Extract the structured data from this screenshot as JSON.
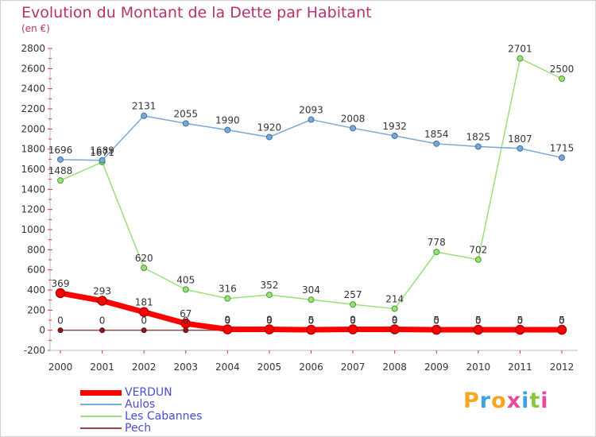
{
  "header": {
    "title": "Evolution du Montant de la Dette par Habitant",
    "subtitle": "(en €)"
  },
  "logo": {
    "letters": [
      "P",
      "r",
      "o",
      "x",
      "i",
      "t",
      "i"
    ],
    "colors": [
      "#f5a623",
      "#3aa3e3",
      "#f5a623",
      "#e84a9a",
      "#3aa3e3",
      "#8cc63f",
      "#e84a9a"
    ]
  },
  "chart_data": {
    "type": "line",
    "title": "Evolution du Montant de la Dette par Habitant",
    "subtitle": "(en €)",
    "x": [
      "2000",
      "2001",
      "2002",
      "2003",
      "2004",
      "2005",
      "2006",
      "2007",
      "2008",
      "2009",
      "2010",
      "2011",
      "2012"
    ],
    "ylim": [
      -200,
      2800
    ],
    "yticks": [
      -200,
      0,
      200,
      400,
      600,
      800,
      1000,
      1200,
      1400,
      1600,
      1800,
      2000,
      2200,
      2400,
      2600,
      2800
    ],
    "grid": false,
    "legend_position": "bottom-left",
    "series": [
      {
        "name": "VERDUN",
        "color": "#ff0000",
        "values": [
          369,
          293,
          181,
          67,
          9,
          9,
          5,
          9,
          9,
          5,
          5,
          5,
          5
        ],
        "labels": [
          "369",
          "293",
          "181",
          "67",
          "9",
          "9",
          "5",
          "9",
          "9",
          "5",
          "5",
          "5",
          "5"
        ]
      },
      {
        "name": "Aulos",
        "color": "#7aa7d4",
        "values": [
          1696,
          1689,
          2131,
          2055,
          1990,
          1920,
          2093,
          2008,
          1932,
          1854,
          1825,
          1807,
          1715
        ],
        "labels": [
          "1696",
          "1689",
          "2131",
          "2055",
          "1990",
          "1920",
          "2093",
          "2008",
          "1932",
          "1854",
          "1825",
          "1807",
          "1715"
        ]
      },
      {
        "name": "Les Cabannes",
        "color": "#99e07a",
        "values": [
          1488,
          1671,
          620,
          405,
          316,
          352,
          304,
          257,
          214,
          778,
          702,
          2701,
          2500
        ],
        "labels": [
          "1488",
          "1671",
          "620",
          "405",
          "316",
          "352",
          "304",
          "257",
          "214",
          "778",
          "702",
          "2701",
          "2500"
        ]
      },
      {
        "name": "Pech",
        "color": "#8b4a4a",
        "values": [
          0,
          0,
          0,
          0,
          0,
          0,
          0,
          0,
          0,
          0,
          0,
          0,
          0
        ],
        "labels": [
          "0",
          "0",
          "0",
          "0",
          "0",
          "0",
          "0",
          "0",
          "0",
          "0",
          "0",
          "0",
          "0"
        ]
      }
    ]
  }
}
